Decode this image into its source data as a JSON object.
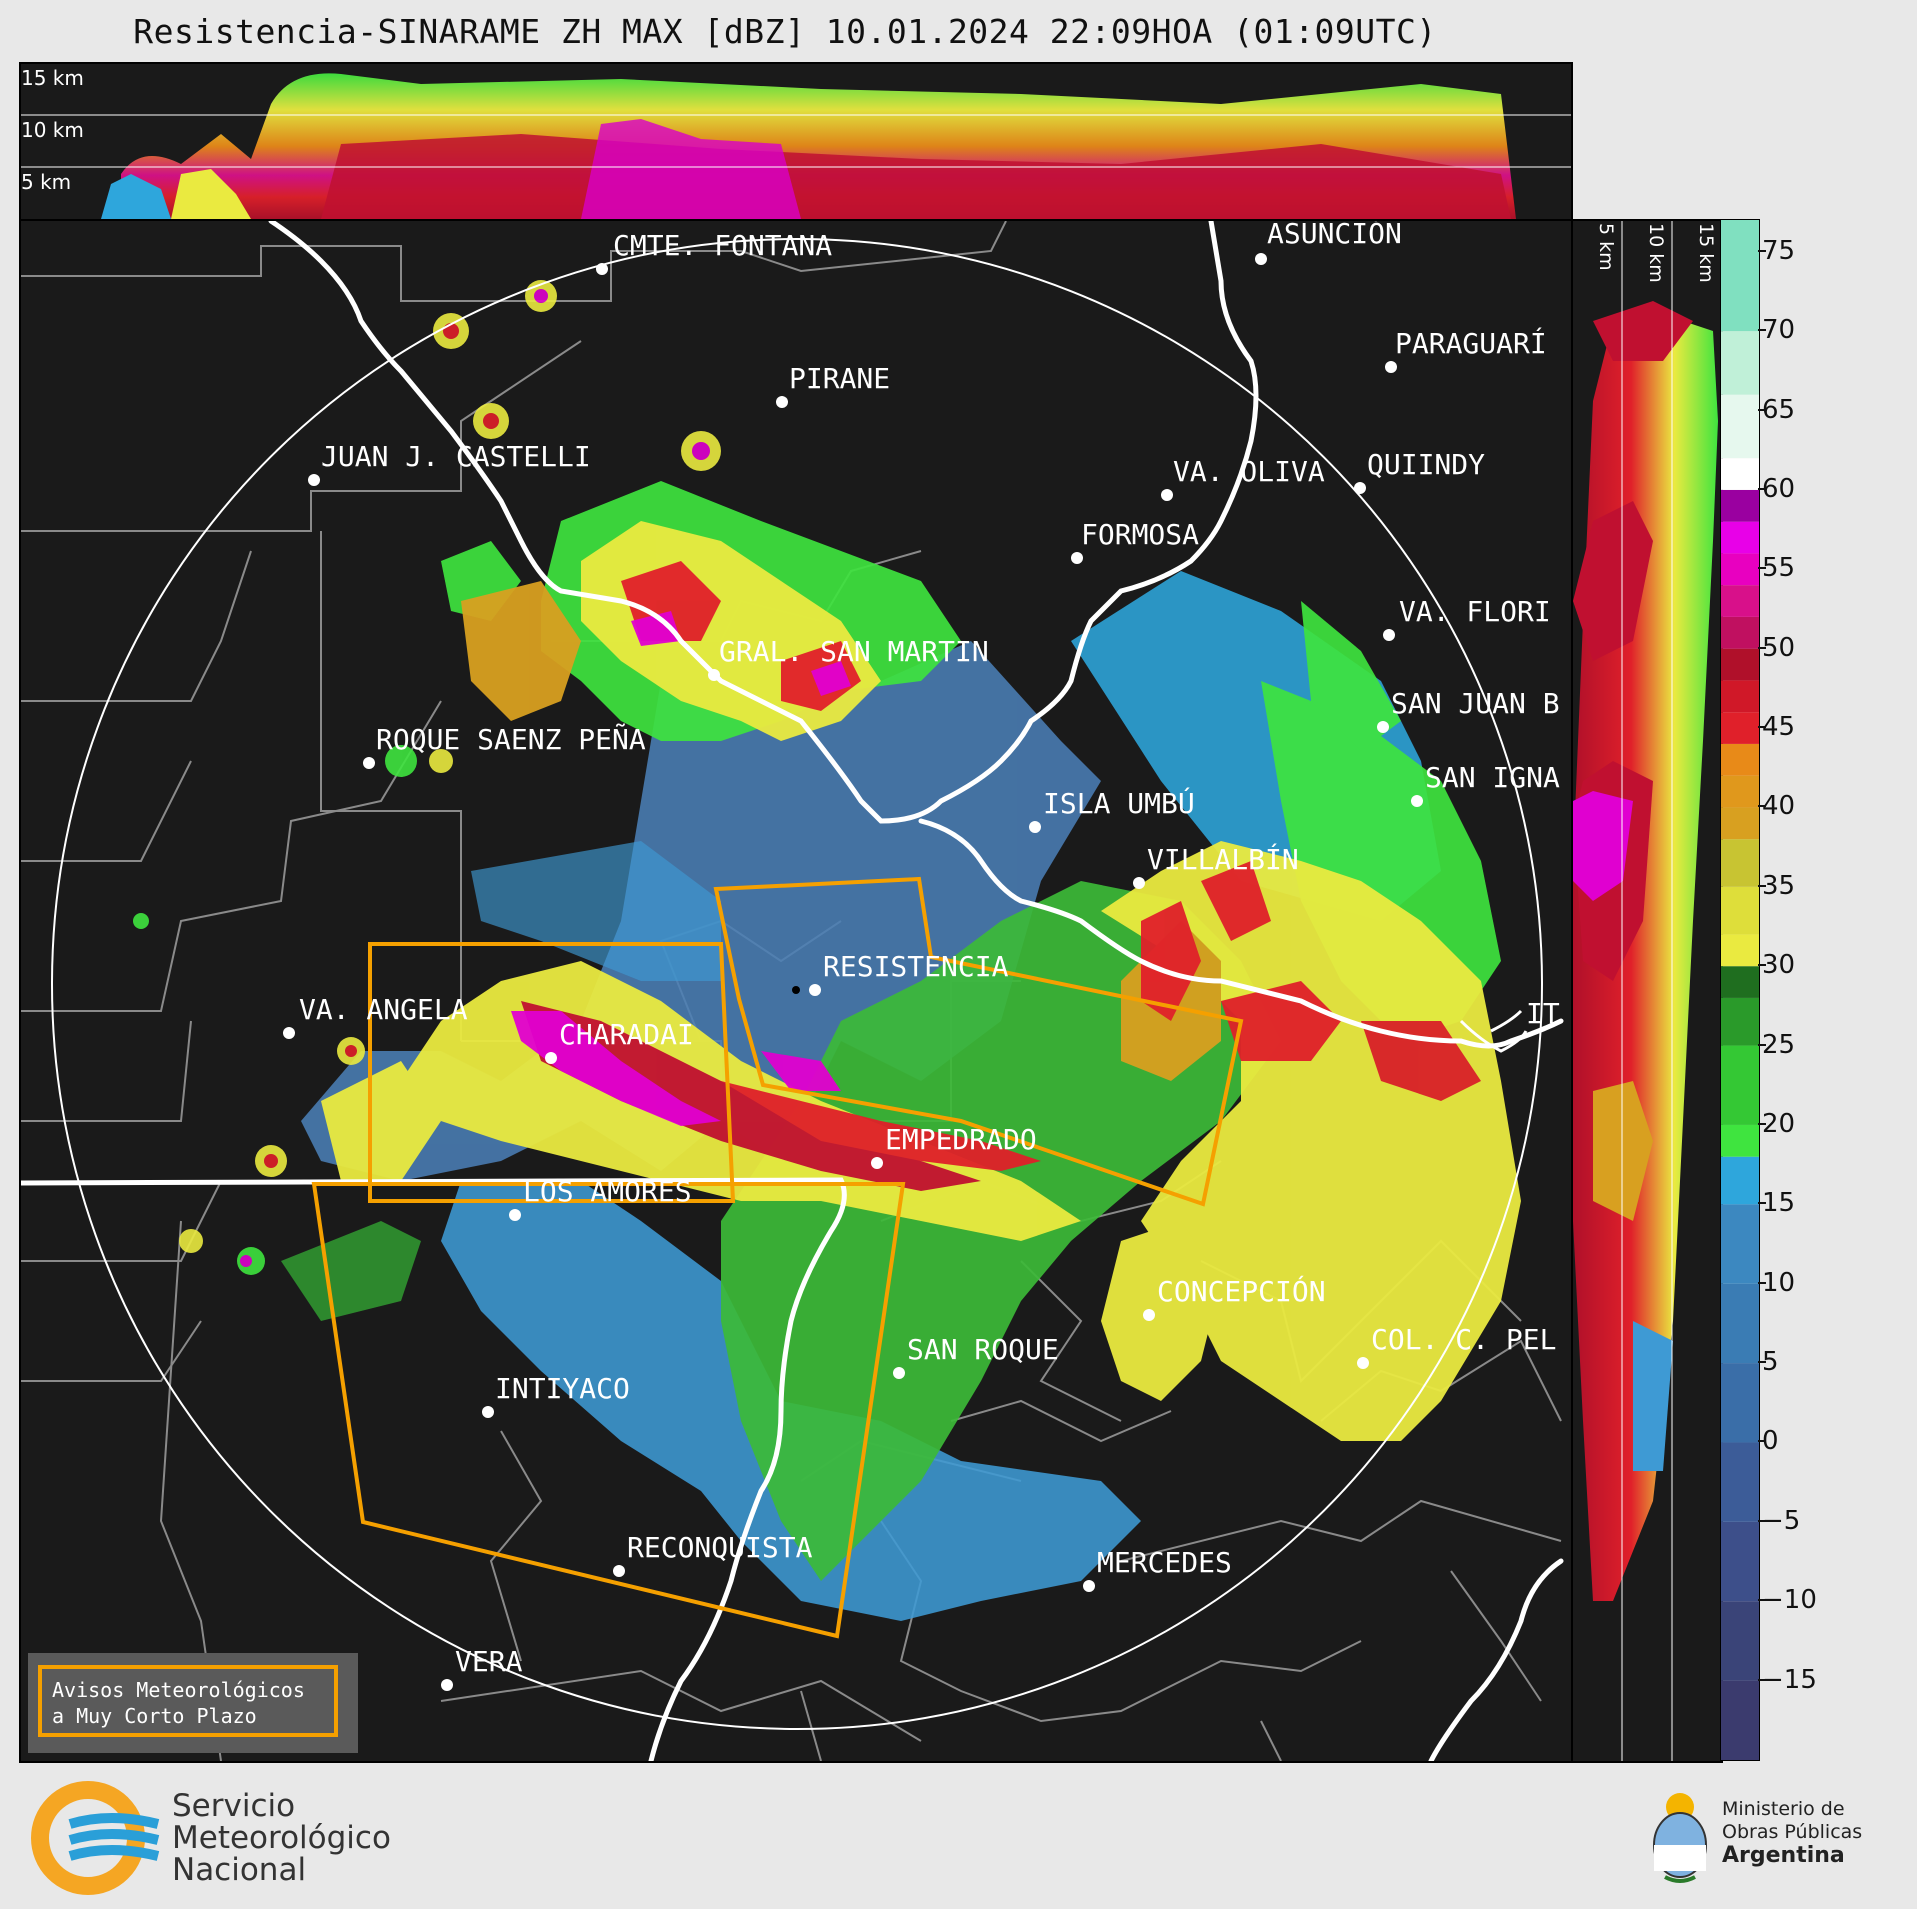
{
  "header": {
    "title": "Resistencia-SINARAME ZH MAX [dBZ] 10.01.2024 22:09HOA (01:09UTC)"
  },
  "top_panel": {
    "height_labels": [
      "15 km",
      "10 km",
      "5 km"
    ]
  },
  "side_panel": {
    "height_labels": [
      "5 km",
      "10 km",
      "15 km"
    ]
  },
  "colorbar": {
    "unit": "dBZ",
    "ticks": [
      "75",
      "70",
      "65",
      "60",
      "55",
      "50",
      "45",
      "40",
      "35",
      "30",
      "25",
      "20",
      "15",
      "10",
      "5",
      "0",
      "−5",
      "−10",
      "−15"
    ],
    "range": [
      -20,
      77
    ],
    "colors": {
      "c_m20": "#3b3b6e",
      "c_m10": "#3d4f8a",
      "c_0": "#3a6ea8",
      "c_5": "#3c88c0",
      "c_15": "#2ea6dc",
      "c_18": "#3fe43f",
      "c_25": "#2a9a2a",
      "c_30": "#1f6e1f",
      "c_31": "#eaea40",
      "c_40": "#d8a020",
      "c_42": "#e88a18",
      "c_44": "#e0202a",
      "c_50": "#b0102a",
      "c_52": "#d8108a",
      "c_56": "#e800e8",
      "c_58": "#9a00a0",
      "c_60": "#ffffff",
      "c_66": "#c0f0d8",
      "c_77": "#80e0c0"
    }
  },
  "cities": [
    {
      "name": "CMTE. FONTANA"
    },
    {
      "name": "ASUNCIÓN"
    },
    {
      "name": "PARAGUARÍ"
    },
    {
      "name": "PIRANE"
    },
    {
      "name": "JUAN J. CASTELLI"
    },
    {
      "name": "VA. OLIVA"
    },
    {
      "name": "QUIINDY"
    },
    {
      "name": "FORMOSA"
    },
    {
      "name": "VA. FLORI"
    },
    {
      "name": "GRAL. SAN MARTIN"
    },
    {
      "name": "SAN JUAN B"
    },
    {
      "name": "ROQUE SAENZ PEÑA"
    },
    {
      "name": "SAN IGNA"
    },
    {
      "name": "ISLA UMBÚ"
    },
    {
      "name": "VILLALBÍN"
    },
    {
      "name": "RESISTENCIA"
    },
    {
      "name": "VA. ANGELA"
    },
    {
      "name": "CHARADAI"
    },
    {
      "name": "IT"
    },
    {
      "name": "EMPEDRADO"
    },
    {
      "name": "LOS AMORES"
    },
    {
      "name": "CONCEPCIÓN"
    },
    {
      "name": "SAN ROQUE"
    },
    {
      "name": "COL. C. PEL"
    },
    {
      "name": "INTIYACO"
    },
    {
      "name": "RECONQUISTA"
    },
    {
      "name": "MERCEDES"
    },
    {
      "name": "VERA"
    }
  ],
  "legend": {
    "line1": "Avisos Meteorológicos",
    "line2": "a Muy Corto Plazo",
    "border_color": "#f5a000"
  },
  "footer": {
    "smn_line1": "Servicio",
    "smn_line2": "Meteorológico",
    "smn_line3": "Nacional",
    "ministry_line1": "Ministerio de",
    "ministry_line2": "Obras Públicas",
    "ministry_line3": "Argentina"
  }
}
